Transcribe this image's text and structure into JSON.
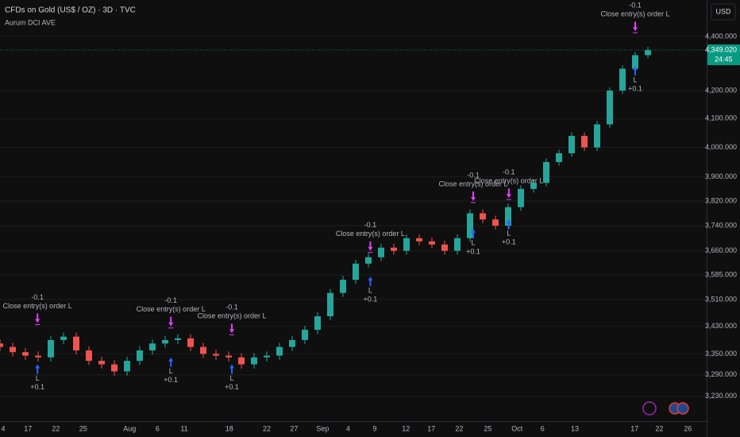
{
  "chart_data": {
    "type": "candlestick",
    "title": "CFDs on Gold (US$ / OZ) · 3D · TVC",
    "subtitle": "Aurum DCI AVE",
    "currency": "USD",
    "log_scale": true,
    "grid": true,
    "up_color": "#26a69a",
    "down_color": "#ef5350",
    "x": [
      0,
      2,
      4,
      6,
      8,
      10,
      12,
      14,
      16,
      18,
      20,
      22,
      24,
      26,
      28,
      30,
      32,
      34,
      36,
      38,
      40,
      42,
      44,
      46,
      48,
      50,
      52,
      54,
      56,
      58,
      60,
      62,
      64,
      66,
      68,
      70,
      72,
      74,
      76,
      78,
      80,
      82,
      84,
      86,
      88,
      90,
      92,
      94,
      96,
      98,
      100,
      102
    ],
    "open": [
      3380,
      3370,
      3355,
      3345,
      3340,
      3390,
      3400,
      3360,
      3330,
      3320,
      3300,
      3330,
      3360,
      3380,
      3390,
      3395,
      3370,
      3350,
      3345,
      3340,
      3320,
      3340,
      3345,
      3370,
      3390,
      3420,
      3460,
      3530,
      3570,
      3620,
      3640,
      3670,
      3660,
      3700,
      3690,
      3680,
      3660,
      3700,
      3780,
      3760,
      3740,
      3800,
      3860,
      3880,
      3950,
      3980,
      4040,
      4000,
      4080,
      4200,
      4280,
      4330
    ],
    "high": [
      3392,
      3382,
      3367,
      3357,
      3402,
      3412,
      3412,
      3372,
      3342,
      3332,
      3342,
      3372,
      3392,
      3402,
      3407,
      3407,
      3382,
      3362,
      3357,
      3352,
      3352,
      3357,
      3382,
      3402,
      3432,
      3472,
      3542,
      3582,
      3632,
      3652,
      3682,
      3682,
      3712,
      3712,
      3702,
      3692,
      3712,
      3792,
      3792,
      3772,
      3812,
      3872,
      3892,
      3962,
      3992,
      4052,
      4052,
      4092,
      4212,
      4292,
      4342,
      4361
    ],
    "low": [
      3358,
      3343,
      3333,
      3328,
      3328,
      3378,
      3348,
      3318,
      3308,
      3288,
      3288,
      3318,
      3348,
      3368,
      3378,
      3358,
      3338,
      3333,
      3328,
      3308,
      3308,
      3328,
      3333,
      3358,
      3378,
      3408,
      3448,
      3518,
      3558,
      3608,
      3628,
      3648,
      3648,
      3678,
      3668,
      3648,
      3648,
      3688,
      3748,
      3728,
      3728,
      3788,
      3848,
      3868,
      3938,
      3968,
      3988,
      3988,
      4068,
      4188,
      4268,
      4318
    ],
    "close": [
      3370,
      3355,
      3345,
      3340,
      3390,
      3400,
      3360,
      3330,
      3320,
      3300,
      3330,
      3360,
      3380,
      3390,
      3395,
      3370,
      3350,
      3345,
      3340,
      3320,
      3340,
      3345,
      3370,
      3390,
      3420,
      3460,
      3530,
      3570,
      3620,
      3640,
      3670,
      3660,
      3700,
      3690,
      3680,
      3660,
      3700,
      3780,
      3760,
      3740,
      3800,
      3860,
      3880,
      3950,
      3980,
      4040,
      4000,
      4080,
      4200,
      4280,
      4330,
      4349
    ],
    "xlim": [
      0,
      111.25
    ],
    "xticks": [
      {
        "value": 0.5,
        "label": "4"
      },
      {
        "value": 4.4,
        "label": "17"
      },
      {
        "value": 8.8,
        "label": "22"
      },
      {
        "value": 13.1,
        "label": "25"
      },
      {
        "value": 20.4,
        "label": "Aug"
      },
      {
        "value": 24.8,
        "label": "6"
      },
      {
        "value": 29,
        "label": "11"
      },
      {
        "value": 36.1,
        "label": "18"
      },
      {
        "value": 42,
        "label": "22"
      },
      {
        "value": 46.3,
        "label": "27"
      },
      {
        "value": 50.8,
        "label": "Sep"
      },
      {
        "value": 54.8,
        "label": "4"
      },
      {
        "value": 59,
        "label": "9"
      },
      {
        "value": 63.9,
        "label": "12"
      },
      {
        "value": 67.9,
        "label": "17"
      },
      {
        "value": 72.3,
        "label": "22"
      },
      {
        "value": 76.8,
        "label": "25"
      },
      {
        "value": 81.4,
        "label": "Oct"
      },
      {
        "value": 85.4,
        "label": "6"
      },
      {
        "value": 90.5,
        "label": "13"
      },
      {
        "value": 99.9,
        "label": "17"
      },
      {
        "value": 103.8,
        "label": "22"
      },
      {
        "value": 108.3,
        "label": "26"
      }
    ],
    "ylim": [
      3162,
      4540
    ],
    "yticks": [
      {
        "value": 3230,
        "label": "3,230.000"
      },
      {
        "value": 3290,
        "label": "3,290.000"
      },
      {
        "value": 3350,
        "label": "3,350.000"
      },
      {
        "value": 3430,
        "label": "3,430.000"
      },
      {
        "value": 3510,
        "label": "3,510.000"
      },
      {
        "value": 3585,
        "label": "3,585.000"
      },
      {
        "value": 3660,
        "label": "3,660.000"
      },
      {
        "value": 3740,
        "label": "3,740.000"
      },
      {
        "value": 3820,
        "label": "3,820.000"
      },
      {
        "value": 3900,
        "label": "3,900.000"
      },
      {
        "value": 4000,
        "label": "4,000.000"
      },
      {
        "value": 4100,
        "label": "4,100.000"
      },
      {
        "value": 4200,
        "label": "4,200.000"
      },
      {
        "value": 4400,
        "label": "4,400.000"
      }
    ],
    "last_price": {
      "value": 4349.02,
      "label": "4,349.020"
    },
    "countdown": "24:45",
    "trades": [
      {
        "x": 5.9,
        "entry": 3320,
        "exit": 3440,
        "entry_label": "L",
        "entry_qty": "+0.1",
        "exit_label": "Close entry(s) order L",
        "exit_qty": "-0.1"
      },
      {
        "x": 26.9,
        "entry": 3340,
        "exit": 3430,
        "entry_label": "L",
        "entry_qty": "+0.1",
        "exit_label": "Close entry(s) order L",
        "exit_qty": "-0.1"
      },
      {
        "x": 36.5,
        "entry": 3320,
        "exit": 3410,
        "entry_label": "L",
        "entry_qty": "+0.1",
        "exit_label": "Close entry(s) order L",
        "exit_qty": "-0.1"
      },
      {
        "x": 58.3,
        "entry": 3580,
        "exit": 3660,
        "entry_label": "L",
        "entry_qty": "+0.1",
        "exit_label": "Close entry(s) order L",
        "exit_qty": "-0.1"
      },
      {
        "x": 74.5,
        "entry": 3730,
        "exit": 3820,
        "entry_label": "L",
        "entry_qty": "+0.1",
        "exit_label": "Close entry(s) order L",
        "exit_qty": "-0.1"
      },
      {
        "x": 80.1,
        "entry": 3760,
        "exit": 3830,
        "entry_label": "L",
        "entry_qty": "+0.1",
        "exit_label": "Close entry(s) order L",
        "exit_qty": "-0.1"
      },
      {
        "x": 100,
        "entry": 4290,
        "exit": 4420,
        "entry_label": "L",
        "entry_qty": "+0.1",
        "exit_label": "Close entry(s) order L",
        "exit_qty": "-0.1"
      }
    ]
  }
}
